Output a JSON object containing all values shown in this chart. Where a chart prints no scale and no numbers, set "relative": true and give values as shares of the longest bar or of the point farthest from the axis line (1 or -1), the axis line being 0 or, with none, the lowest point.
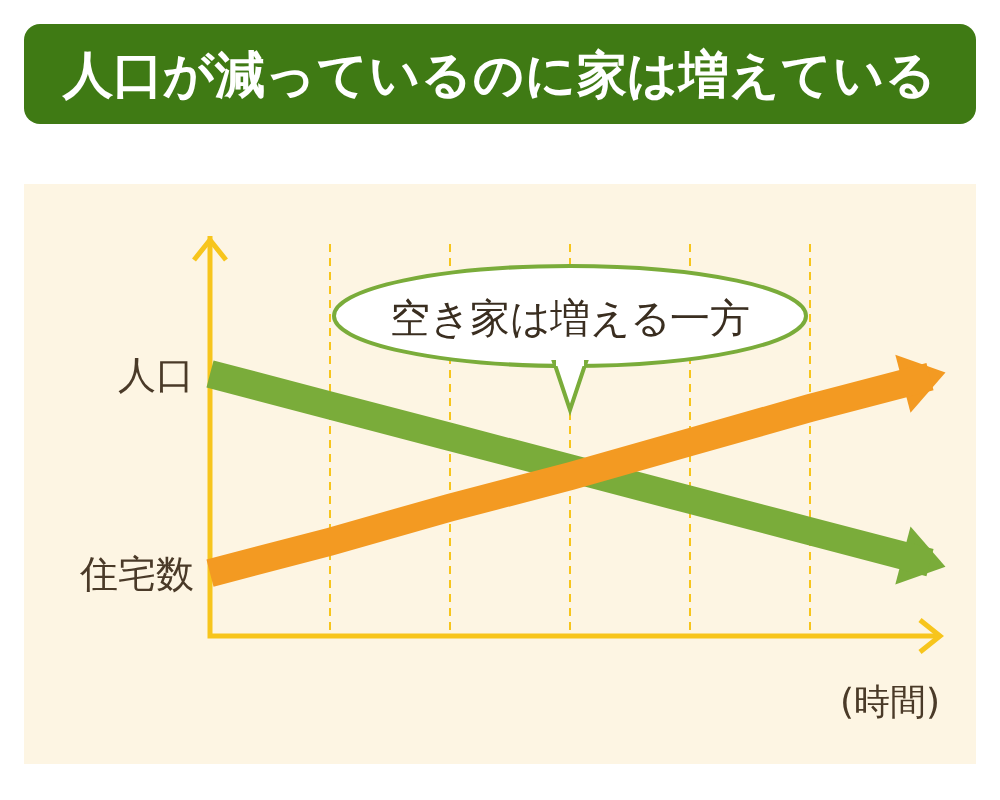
{
  "chart_data": {
    "type": "line",
    "title": "人口が減っているのに家は増えている",
    "xlabel": "(時間)",
    "categories": [
      null,
      null,
      null,
      null,
      null,
      null,
      null
    ],
    "relative": true,
    "grid": "x",
    "legend": false,
    "marker": "none",
    "line_style": "solid",
    "series": [
      {
        "name": "人口",
        "color": "#7aac3a",
        "values": [
          1,
          0.88,
          0.76,
          0.64,
          0.52,
          0.4,
          0.28
        ]
      },
      {
        "name": "住宅数",
        "color": "#f39a22",
        "values": [
          0.24,
          0.36,
          0.49,
          0.61,
          0.74,
          0.87,
          0.99
        ]
      }
    ],
    "annotations": [
      "空き家は増える一方"
    ]
  }
}
